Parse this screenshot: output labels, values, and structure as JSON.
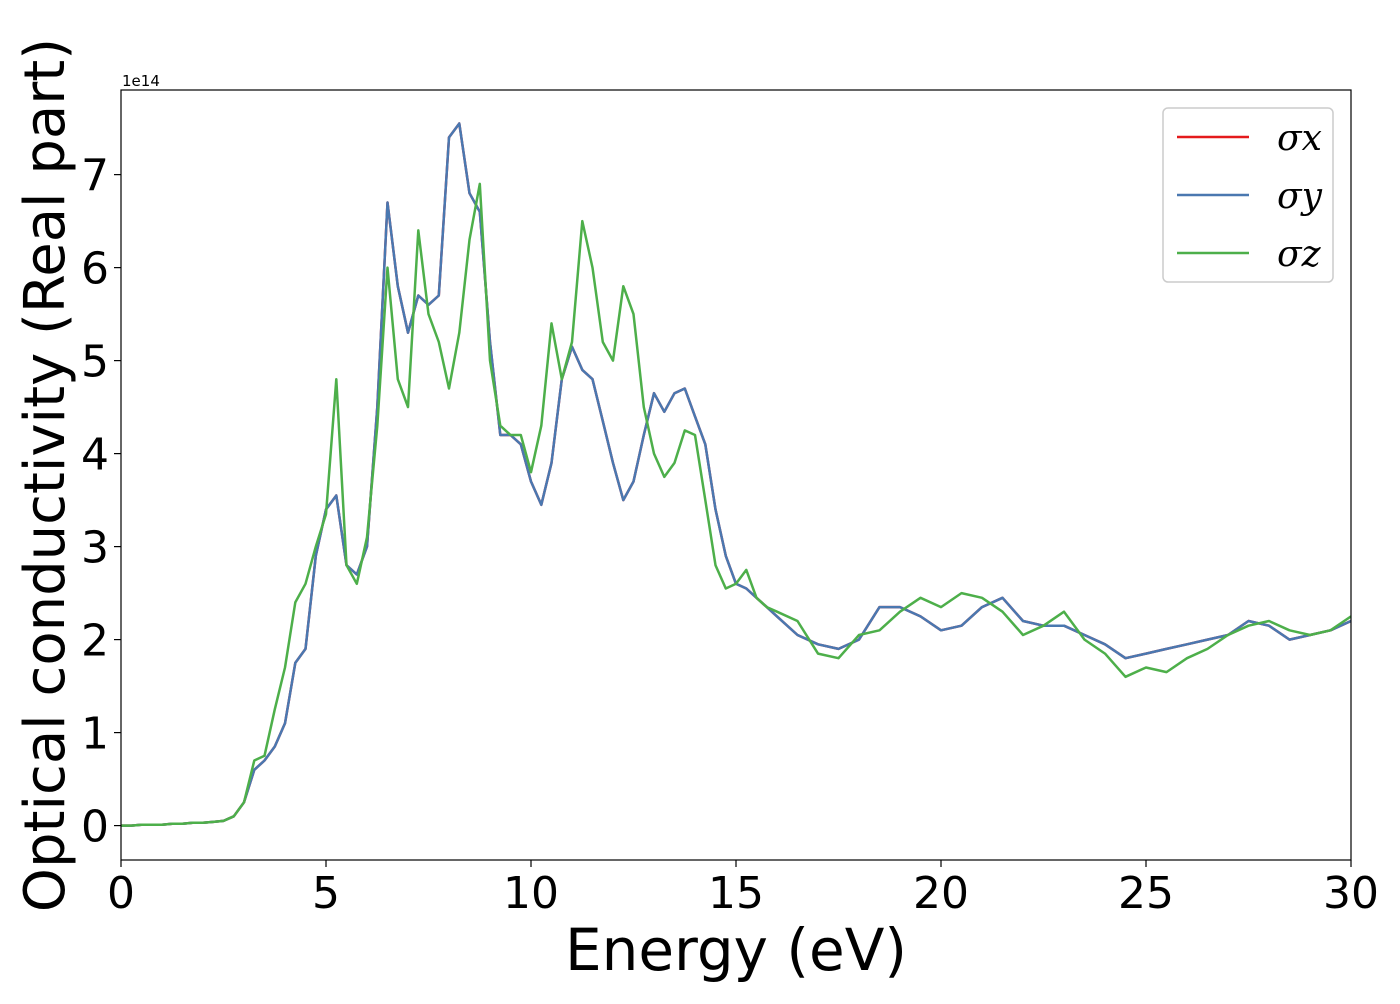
{
  "chart_data": {
    "type": "line",
    "xlabel": "Energy (eV)",
    "ylabel": "Optical conductivity (Real part)",
    "offset_label": "1e14",
    "x": [
      0,
      0.25,
      0.5,
      0.75,
      1,
      1.25,
      1.5,
      1.75,
      2,
      2.25,
      2.5,
      2.75,
      3,
      3.25,
      3.5,
      3.75,
      4,
      4.25,
      4.5,
      4.75,
      5,
      5.25,
      5.5,
      5.75,
      6,
      6.25,
      6.5,
      6.75,
      7,
      7.25,
      7.5,
      7.75,
      8,
      8.25,
      8.5,
      8.75,
      9,
      9.25,
      9.5,
      9.75,
      10,
      10.25,
      10.5,
      10.75,
      11,
      11.25,
      11.5,
      11.75,
      12,
      12.25,
      12.5,
      12.75,
      13,
      13.25,
      13.5,
      13.75,
      14,
      14.25,
      14.5,
      14.75,
      15,
      15.25,
      15.5,
      15.75,
      16,
      16.5,
      17,
      17.5,
      18,
      18.5,
      19,
      19.5,
      20,
      20.5,
      21,
      21.5,
      22,
      22.5,
      23,
      23.5,
      24,
      24.5,
      25,
      25.5,
      26,
      26.5,
      27,
      27.5,
      28,
      28.5,
      29,
      29.5,
      30
    ],
    "series": [
      {
        "name": "σx",
        "color": "#e41a1c",
        "values": [
          0,
          0,
          0.01,
          0.01,
          0.01,
          0.02,
          0.02,
          0.03,
          0.03,
          0.04,
          0.05,
          0.1,
          0.25,
          0.6,
          0.7,
          0.85,
          1.1,
          1.75,
          1.9,
          2.9,
          3.4,
          3.55,
          2.8,
          2.7,
          3.0,
          4.5,
          6.7,
          5.8,
          5.3,
          5.7,
          5.6,
          5.7,
          7.4,
          7.55,
          6.8,
          6.6,
          5.2,
          4.2,
          4.2,
          4.1,
          3.7,
          3.45,
          3.9,
          4.8,
          5.15,
          4.9,
          4.8,
          4.35,
          3.9,
          3.5,
          3.7,
          4.2,
          4.65,
          4.45,
          4.65,
          4.7,
          4.4,
          4.1,
          3.4,
          2.9,
          2.6,
          2.55,
          2.45,
          2.35,
          2.25,
          2.05,
          1.95,
          1.9,
          2.0,
          2.35,
          2.35,
          2.25,
          2.1,
          2.15,
          2.35,
          2.45,
          2.2,
          2.15,
          2.15,
          2.05,
          1.95,
          1.8,
          1.85,
          1.9,
          1.95,
          2.0,
          2.05,
          2.2,
          2.15,
          2.0,
          2.05,
          2.1,
          2.2
        ]
      },
      {
        "name": "σy",
        "color": "#4a78b0",
        "values": [
          0,
          0,
          0.01,
          0.01,
          0.01,
          0.02,
          0.02,
          0.03,
          0.03,
          0.04,
          0.05,
          0.1,
          0.25,
          0.6,
          0.7,
          0.85,
          1.1,
          1.75,
          1.9,
          2.9,
          3.4,
          3.55,
          2.8,
          2.7,
          3.0,
          4.5,
          6.7,
          5.8,
          5.3,
          5.7,
          5.6,
          5.7,
          7.4,
          7.55,
          6.8,
          6.6,
          5.2,
          4.2,
          4.2,
          4.1,
          3.7,
          3.45,
          3.9,
          4.8,
          5.15,
          4.9,
          4.8,
          4.35,
          3.9,
          3.5,
          3.7,
          4.2,
          4.65,
          4.45,
          4.65,
          4.7,
          4.4,
          4.1,
          3.4,
          2.9,
          2.6,
          2.55,
          2.45,
          2.35,
          2.25,
          2.05,
          1.95,
          1.9,
          2.0,
          2.35,
          2.35,
          2.25,
          2.1,
          2.15,
          2.35,
          2.45,
          2.2,
          2.15,
          2.15,
          2.05,
          1.95,
          1.8,
          1.85,
          1.9,
          1.95,
          2.0,
          2.05,
          2.2,
          2.15,
          2.0,
          2.05,
          2.1,
          2.2
        ]
      },
      {
        "name": "σz",
        "color": "#4daf4a",
        "values": [
          0,
          0,
          0.01,
          0.01,
          0.01,
          0.02,
          0.02,
          0.03,
          0.03,
          0.04,
          0.05,
          0.1,
          0.25,
          0.7,
          0.75,
          1.25,
          1.7,
          2.4,
          2.6,
          3.0,
          3.35,
          4.8,
          2.8,
          2.6,
          3.1,
          4.3,
          6.0,
          4.8,
          4.5,
          6.4,
          5.5,
          5.2,
          4.7,
          5.3,
          6.3,
          6.9,
          5.0,
          4.3,
          4.2,
          4.2,
          3.8,
          4.3,
          5.4,
          4.8,
          5.2,
          6.5,
          6.0,
          5.2,
          5.0,
          5.8,
          5.5,
          4.5,
          4.0,
          3.75,
          3.9,
          4.25,
          4.2,
          3.5,
          2.8,
          2.55,
          2.6,
          2.75,
          2.45,
          2.35,
          2.3,
          2.2,
          1.85,
          1.8,
          2.05,
          2.1,
          2.3,
          2.45,
          2.35,
          2.5,
          2.45,
          2.3,
          2.05,
          2.15,
          2.3,
          2.0,
          1.85,
          1.6,
          1.7,
          1.65,
          1.8,
          1.9,
          2.05,
          2.15,
          2.2,
          2.1,
          2.05,
          2.1,
          2.25
        ]
      }
    ],
    "xlim": [
      0,
      30
    ],
    "xticks": [
      0,
      5,
      10,
      15,
      20,
      25,
      30
    ],
    "ylim": [
      -0.37,
      7.91
    ],
    "yticks": [
      0,
      1,
      2,
      3,
      4,
      5,
      6,
      7
    ],
    "grid": false,
    "legend": "upper right"
  }
}
